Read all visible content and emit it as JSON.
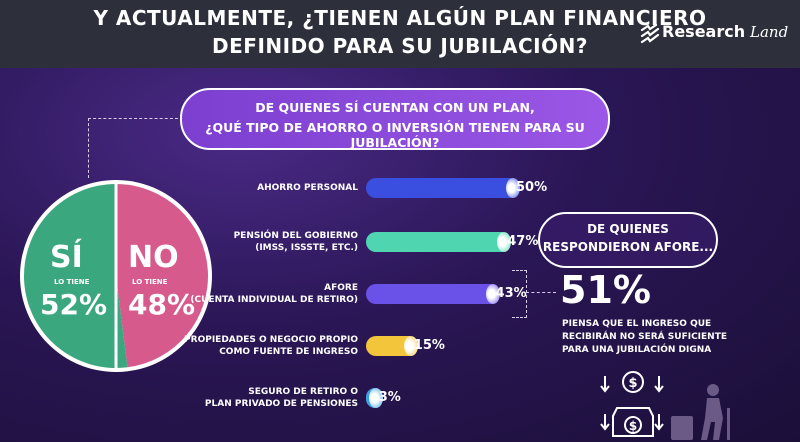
{
  "header": {
    "title_line1": "Y ACTUALMENTE, ¿TIENEN ALGÚN PLAN FINANCIERO",
    "title_line2": "DEFINIDO PARA SU JUBILACIÓN?",
    "logo_text": "Research",
    "logo_script": "Land"
  },
  "question": {
    "line1": "DE QUIENES SÍ CUENTAN CON UN PLAN,",
    "line2": "¿QUÉ TIPO DE AHORRO O INVERSIÓN TIENEN PARA SU JUBILACIÓN?"
  },
  "pie": {
    "yes_word": "SÍ",
    "yes_sub": "LO TIENE",
    "yes_pct": "52%",
    "no_word": "NO",
    "no_sub": "LO TIENE",
    "no_pct": "48%"
  },
  "afore_note": {
    "box_line1": "DE QUIENES",
    "box_line2": "RESPONDIERON AFORE...",
    "pct": "51%",
    "text": "PIENSA QUE EL INGRESO QUE RECIBIRÁN NO SERÁ SUFICIENTE PARA UNA JUBILACIÓN DIGNA"
  },
  "chart_data": [
    {
      "type": "pie",
      "categories": [
        "SÍ LO TIENE",
        "NO LO TIENE"
      ],
      "values": [
        52,
        48
      ],
      "colors": [
        "#3aa77e",
        "#d65a8c"
      ]
    },
    {
      "type": "bar",
      "orientation": "horizontal",
      "title": "DE QUIENES SÍ CUENTAN CON UN PLAN, ¿QUÉ TIPO DE AHORRO O INVERSIÓN TIENEN PARA SU JUBILACIÓN?",
      "categories": [
        [
          "AHORRO PERSONAL"
        ],
        [
          "PENSIÓN DEL GOBIERNO",
          "(IMSS, ISSSTE, ETC.)"
        ],
        [
          "AFORE",
          "(CUENTA INDIVIDUAL DE RETIRO)"
        ],
        [
          "PROPIEDADES O NEGOCIO PROPIO",
          "COMO FUENTE DE INGRESO"
        ],
        [
          "SEGURO DE RETIRO O",
          "PLAN PRIVADO DE PENSIONES"
        ]
      ],
      "values": [
        50,
        47,
        43,
        15,
        3
      ],
      "value_labels": [
        "50%",
        "47%",
        "43%",
        "15%",
        "3%"
      ],
      "colors": [
        "#3a4fe0",
        "#4fd6b0",
        "#6a52e8",
        "#f2c53a",
        "#3fa2e0"
      ],
      "xlim": [
        0,
        50
      ]
    }
  ]
}
